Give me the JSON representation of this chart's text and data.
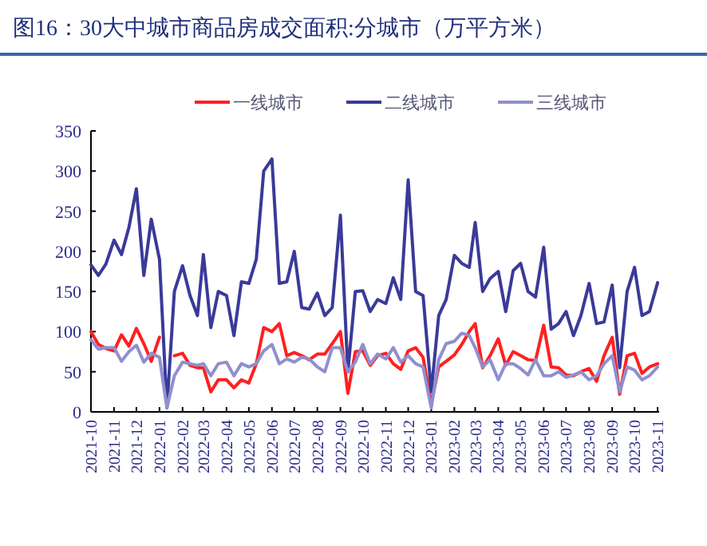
{
  "chart_data": {
    "type": "line",
    "title": "图16：30大中城市商品房成交面积:分城市（万平方米）",
    "x": [
      "2021-10-01",
      "2021-10-11",
      "2021-10-21",
      "2021-11-01",
      "2021-11-11",
      "2021-11-21",
      "2021-12-01",
      "2021-12-11",
      "2021-12-21",
      "2022-01-01",
      "2022-01-11",
      "2022-01-21",
      "2022-02-01",
      "2022-02-11",
      "2022-02-21",
      "2022-03-01",
      "2022-03-11",
      "2022-03-21",
      "2022-04-01",
      "2022-04-11",
      "2022-04-21",
      "2022-05-01",
      "2022-05-11",
      "2022-05-21",
      "2022-06-01",
      "2022-06-11",
      "2022-06-21",
      "2022-07-01",
      "2022-07-11",
      "2022-07-21",
      "2022-08-01",
      "2022-08-11",
      "2022-08-21",
      "2022-09-01",
      "2022-09-11",
      "2022-09-21",
      "2022-10-01",
      "2022-10-11",
      "2022-10-21",
      "2022-11-01",
      "2022-11-11",
      "2022-11-21",
      "2022-12-01",
      "2022-12-11",
      "2022-12-21",
      "2023-01-01",
      "2023-01-11",
      "2023-01-21",
      "2023-02-01",
      "2023-02-11",
      "2023-02-21",
      "2023-03-01",
      "2023-03-11",
      "2023-03-21",
      "2023-04-01",
      "2023-04-11",
      "2023-04-21",
      "2023-05-01",
      "2023-05-11",
      "2023-05-21",
      "2023-06-01",
      "2023-06-11",
      "2023-06-21",
      "2023-07-01",
      "2023-07-11",
      "2023-07-21",
      "2023-08-01",
      "2023-08-11",
      "2023-08-21",
      "2023-09-01",
      "2023-09-11",
      "2023-09-21",
      "2023-10-01",
      "2023-10-11",
      "2023-10-21",
      "2023-11-01"
    ],
    "series": [
      {
        "name": "一线城市",
        "color": "#ff2020",
        "values": [
          100,
          84,
          79,
          76,
          96,
          82,
          104,
          85,
          63,
          93,
          null,
          70,
          73,
          58,
          55,
          55,
          25,
          40,
          40,
          30,
          40,
          36,
          60,
          105,
          100,
          110,
          70,
          74,
          70,
          65,
          72,
          72,
          85,
          100,
          23,
          75,
          76,
          58,
          70,
          73,
          60,
          53,
          76,
          80,
          68,
          10,
          56,
          63,
          71,
          84,
          100,
          110,
          55,
          70,
          91,
          58,
          75,
          70,
          65,
          64,
          108,
          56,
          55,
          46,
          45,
          50,
          54,
          38,
          70,
          93,
          22,
          70,
          73,
          48,
          56,
          60
        ]
      },
      {
        "name": "二线城市",
        "color": "#3a3a9a",
        "values": [
          183,
          170,
          184,
          214,
          196,
          230,
          278,
          170,
          240,
          190,
          5,
          150,
          182,
          145,
          120,
          196,
          105,
          150,
          145,
          95,
          162,
          160,
          190,
          300,
          315,
          160,
          162,
          200,
          130,
          128,
          148,
          120,
          130,
          245,
          50,
          150,
          151,
          125,
          140,
          135,
          167,
          140,
          289,
          150,
          145,
          25,
          120,
          140,
          195,
          185,
          180,
          236,
          150,
          166,
          175,
          125,
          176,
          185,
          150,
          143,
          205,
          103,
          110,
          125,
          95,
          120,
          160,
          110,
          112,
          158,
          55,
          150,
          180,
          120,
          125,
          161
        ]
      },
      {
        "name": "三线城市",
        "color": "#8f8fd0",
        "values": [
          90,
          78,
          80,
          80,
          63,
          75,
          83,
          62,
          73,
          68,
          5,
          45,
          62,
          60,
          58,
          60,
          45,
          60,
          62,
          45,
          60,
          56,
          60,
          76,
          84,
          60,
          66,
          62,
          68,
          66,
          56,
          50,
          80,
          80,
          50,
          62,
          84,
          60,
          72,
          66,
          80,
          62,
          70,
          60,
          56,
          5,
          65,
          85,
          88,
          98,
          95,
          80,
          56,
          65,
          40,
          60,
          60,
          54,
          46,
          65,
          45,
          45,
          50,
          43,
          46,
          50,
          40,
          45,
          60,
          70,
          25,
          56,
          52,
          40,
          45,
          56
        ]
      }
    ],
    "xlim": [
      "2021-10-01",
      "2023-11-03"
    ],
    "xticks": [
      "2021-10",
      "2021-11",
      "2021-12",
      "2022-01",
      "2022-02",
      "2022-03",
      "2022-04",
      "2022-05",
      "2022-06",
      "2022-07",
      "2022-08",
      "2022-09",
      "2022-10",
      "2022-11",
      "2022-12",
      "2023-01",
      "2023-02",
      "2023-03",
      "2023-04",
      "2023-05",
      "2023-06",
      "2023-07",
      "2023-08",
      "2023-09",
      "2023-10",
      "2023-11"
    ],
    "ylim": [
      0,
      350
    ],
    "yticks": [
      0,
      50,
      100,
      150,
      200,
      250,
      300,
      350
    ],
    "legend": "top",
    "grid": false,
    "marker": "none",
    "line_style": "solid"
  }
}
